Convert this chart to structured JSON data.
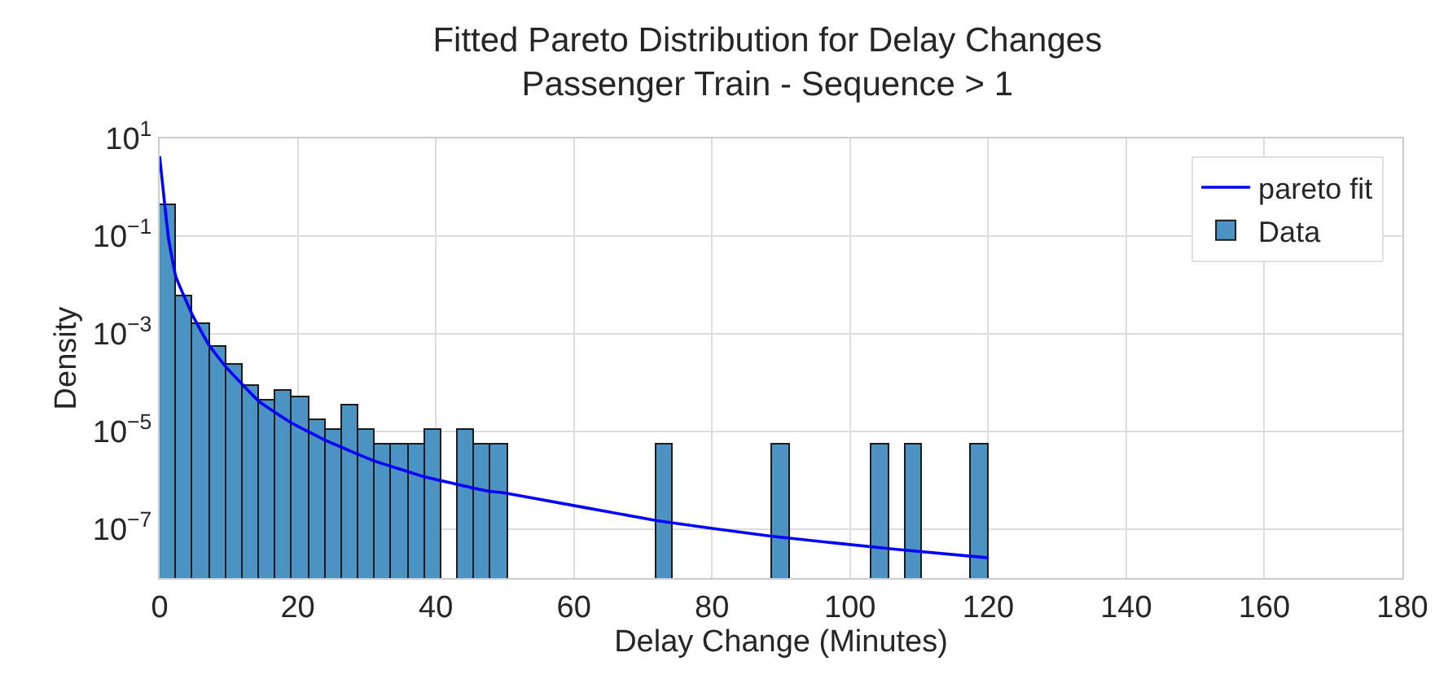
{
  "chart_data": {
    "type": "histogram",
    "title": "Fitted Pareto Distribution for Delay Changes",
    "subtitle": "Passenger Train - Sequence > 1",
    "xlabel": "Delay Change (Minutes)",
    "ylabel": "Density",
    "bins": [
      0,
      2.4,
      4.8,
      7.2,
      9.6,
      12,
      14.4,
      16.8,
      19.2,
      21.6,
      24,
      26.4,
      28.8,
      31.2,
      33.6,
      36,
      38.4,
      40.8,
      43.2,
      45.6,
      48,
      50.4,
      52.8,
      55.2,
      57.6,
      60,
      62.4,
      64.8,
      67.2,
      69.6,
      72,
      74.4,
      76.8,
      79.2,
      81.6,
      84,
      86.4,
      88.8,
      91.2,
      93.6,
      96,
      98.4,
      100.8,
      103.2,
      105.6,
      108,
      110.4,
      112.8,
      115.2,
      117.6,
      120
    ],
    "series": [
      {
        "name": "pareto fit",
        "type": "line",
        "color": "#0000ff",
        "x": [
          0,
          1.3,
          2.35,
          4.7,
          7.1,
          9.6,
          14.4,
          19.1,
          24.1,
          31.1,
          38.2,
          47.6,
          50,
          72,
          88.5,
          106.4,
          120
        ],
        "values": [
          4.3,
          0.087,
          0.0148,
          0.0025,
          0.0006,
          0.00021,
          4.1e-05,
          1.5e-05,
          6.5e-06,
          2.5e-06,
          1.2e-06,
          6e-07,
          5.5e-07,
          1.5e-07,
          7.2e-08,
          3.9e-08,
          2.6e-08
        ]
      },
      {
        "name": "Data",
        "color": "#4c92c3",
        "values": [
          0.43,
          0.0057,
          0.0016,
          0.00053,
          0.00024,
          8.8e-05,
          4.3e-05,
          6.6e-05,
          4.9e-05,
          1.7e-05,
          1.1e-05,
          3.3e-05,
          1.1e-05,
          5.3e-06,
          5.3e-06,
          5.3e-06,
          1.1e-05,
          null,
          1.1e-05,
          5.3e-06,
          5.3e-06,
          null,
          null,
          null,
          null,
          null,
          null,
          null,
          null,
          null,
          5.3e-06,
          null,
          null,
          null,
          null,
          null,
          null,
          5.3e-06,
          null,
          null,
          null,
          null,
          null,
          5.3e-06,
          null,
          5.3e-06,
          null,
          null,
          null,
          5.3e-06
        ]
      }
    ],
    "xlim": [
      0,
      180
    ],
    "xticks": [
      0,
      20,
      40,
      60,
      80,
      100,
      120,
      140,
      160,
      180
    ],
    "ylim": [
      1e-08,
      10
    ],
    "yticks": [
      {
        "value": 10,
        "label": "10$^{1}$"
      },
      {
        "value": 0.1,
        "label": "10$^{−1}$"
      },
      {
        "value": 0.001,
        "label": "10$^{−3}$"
      },
      {
        "value": 1e-05,
        "label": "10$^{−5}$"
      },
      {
        "value": 1e-07,
        "label": "10$^{−7}$"
      }
    ],
    "log": "y",
    "grid": true,
    "legend": "top right"
  }
}
